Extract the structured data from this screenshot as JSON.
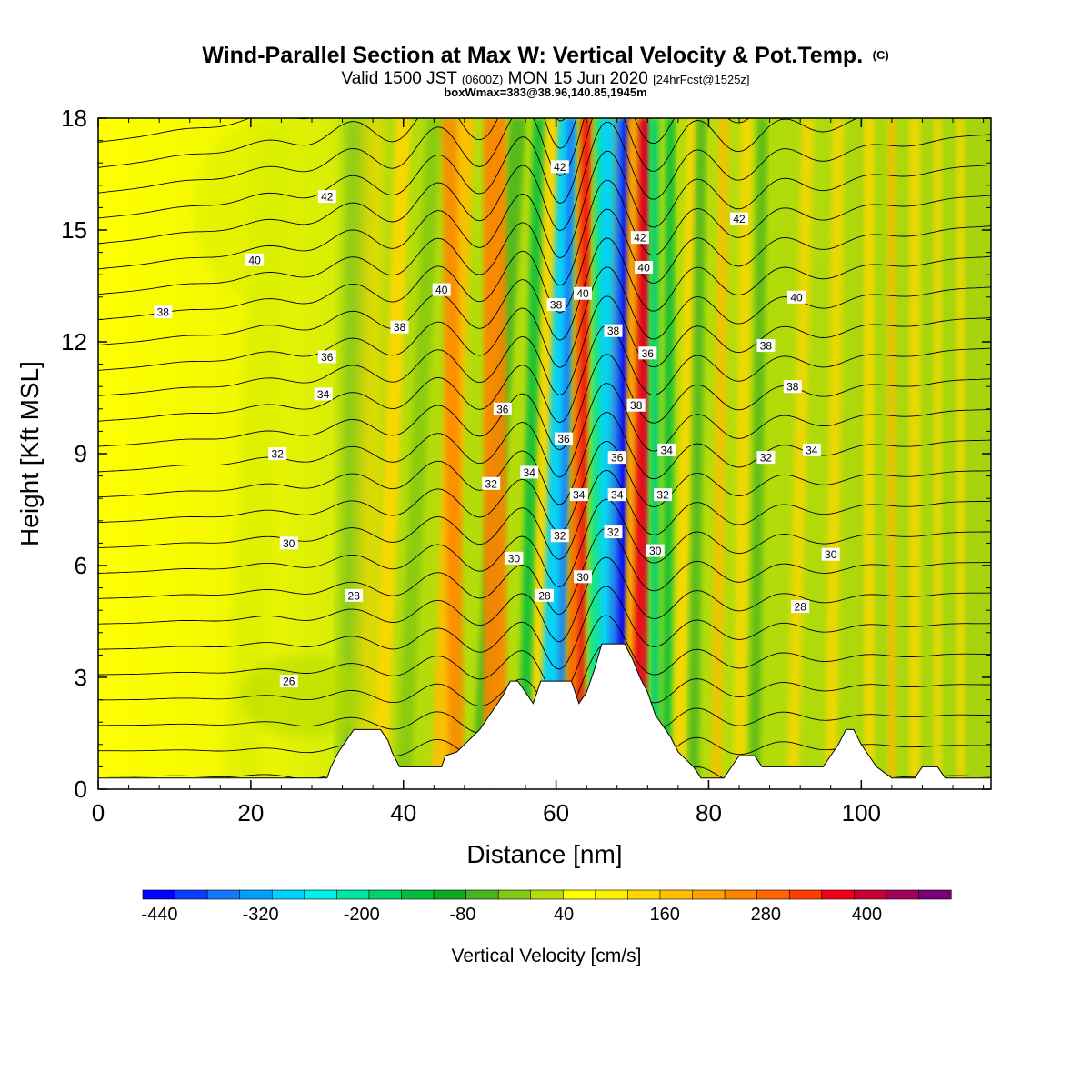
{
  "header": {
    "title_main": "Wind-Parallel Section at Max W: Vertical Velocity & Pot.Temp.",
    "title_mark": "(C)",
    "subtitle_a": "Valid 1500 JST ",
    "subtitle_b": "(0600Z)",
    "subtitle_c": " MON 15 Jun 2020 ",
    "subtitle_d": "[24hrFcst@1525z]",
    "boxline": "boxWmax=383@38.96,140.85,1945m"
  },
  "chart_data": {
    "type": "contour",
    "xlabel": "Distance [nm]",
    "ylabel": "Height [Kft MSL]",
    "xlim": [
      0,
      117
    ],
    "ylim": [
      0,
      18
    ],
    "x_ticks": [
      0,
      20,
      40,
      60,
      80,
      100
    ],
    "y_ticks": [
      0,
      3,
      6,
      9,
      12,
      15,
      18
    ],
    "colorbar": {
      "title": "Vertical Velocity [cm/s]",
      "min": -460,
      "max": 500,
      "step": 40,
      "labels": [
        -440,
        -320,
        -200,
        -80,
        40,
        160,
        280,
        400
      ],
      "colors": [
        "#0000ff",
        "#0a3cff",
        "#1478ff",
        "#00a0ff",
        "#00d2ff",
        "#00f0e6",
        "#00e6a0",
        "#00d26e",
        "#00be3c",
        "#0aaa1e",
        "#46b41e",
        "#82c814",
        "#b4dc0a",
        "#ffff00",
        "#fff000",
        "#ffd700",
        "#ffbe00",
        "#ffa000",
        "#ff8200",
        "#ff6400",
        "#ff3c00",
        "#f00014",
        "#c80032",
        "#a0005a",
        "#780078"
      ]
    },
    "theta_contour_labels": [
      {
        "value": "42",
        "x": 30,
        "y": 15.9
      },
      {
        "value": "40",
        "x": 20.5,
        "y": 14.2
      },
      {
        "value": "38",
        "x": 8.5,
        "y": 12.8
      },
      {
        "value": "36",
        "x": 30,
        "y": 11.6
      },
      {
        "value": "34",
        "x": 29.5,
        "y": 10.6
      },
      {
        "value": "32",
        "x": 23.5,
        "y": 9.0
      },
      {
        "value": "30",
        "x": 25,
        "y": 6.6
      },
      {
        "value": "28",
        "x": 33.5,
        "y": 5.2
      },
      {
        "value": "26",
        "x": 25,
        "y": 2.9
      },
      {
        "value": "40",
        "x": 45,
        "y": 13.4
      },
      {
        "value": "38",
        "x": 39.5,
        "y": 12.4
      },
      {
        "value": "36",
        "x": 53,
        "y": 10.2
      },
      {
        "value": "32",
        "x": 51.5,
        "y": 8.2
      },
      {
        "value": "34",
        "x": 56.5,
        "y": 8.5
      },
      {
        "value": "30",
        "x": 54.5,
        "y": 6.2
      },
      {
        "value": "28",
        "x": 58.5,
        "y": 5.2
      },
      {
        "value": "42",
        "x": 60.5,
        "y": 16.7
      },
      {
        "value": "38",
        "x": 60,
        "y": 13.0
      },
      {
        "value": "40",
        "x": 63.5,
        "y": 13.3
      },
      {
        "value": "36",
        "x": 61,
        "y": 9.4
      },
      {
        "value": "34",
        "x": 63,
        "y": 7.9
      },
      {
        "value": "32",
        "x": 60.5,
        "y": 6.8
      },
      {
        "value": "30",
        "x": 63.5,
        "y": 5.7
      },
      {
        "value": "38",
        "x": 67.5,
        "y": 12.3
      },
      {
        "value": "36",
        "x": 68,
        "y": 8.9
      },
      {
        "value": "34",
        "x": 68,
        "y": 7.9
      },
      {
        "value": "32",
        "x": 67.5,
        "y": 6.9
      },
      {
        "value": "42",
        "x": 71,
        "y": 14.8
      },
      {
        "value": "40",
        "x": 71.5,
        "y": 14.0
      },
      {
        "value": "36",
        "x": 72,
        "y": 11.7
      },
      {
        "value": "38",
        "x": 70.5,
        "y": 10.3
      },
      {
        "value": "34",
        "x": 74.5,
        "y": 9.1
      },
      {
        "value": "32",
        "x": 74,
        "y": 7.9
      },
      {
        "value": "30",
        "x": 73,
        "y": 6.4
      },
      {
        "value": "42",
        "x": 84,
        "y": 15.3
      },
      {
        "value": "40",
        "x": 91.5,
        "y": 13.2
      },
      {
        "value": "38",
        "x": 87.5,
        "y": 11.9
      },
      {
        "value": "38",
        "x": 91,
        "y": 10.8
      },
      {
        "value": "34",
        "x": 93.5,
        "y": 9.1
      },
      {
        "value": "32",
        "x": 87.5,
        "y": 8.9
      },
      {
        "value": "30",
        "x": 96,
        "y": 6.3
      },
      {
        "value": "28",
        "x": 92,
        "y": 4.9
      }
    ],
    "terrain": [
      [
        0,
        0.3
      ],
      [
        30,
        0.3
      ],
      [
        30.5,
        0.6
      ],
      [
        31.5,
        1.0
      ],
      [
        32.5,
        1.3
      ],
      [
        33.5,
        1.6
      ],
      [
        37,
        1.6
      ],
      [
        38,
        1.3
      ],
      [
        38.5,
        1.0
      ],
      [
        39.5,
        0.6
      ],
      [
        45,
        0.6
      ],
      [
        45.5,
        0.9
      ],
      [
        47,
        1.0
      ],
      [
        48,
        1.2
      ],
      [
        49,
        1.4
      ],
      [
        50,
        1.6
      ],
      [
        51,
        1.9
      ],
      [
        52,
        2.2
      ],
      [
        53,
        2.5
      ],
      [
        54,
        2.9
      ],
      [
        55,
        2.9
      ],
      [
        56,
        2.6
      ],
      [
        57,
        2.3
      ],
      [
        58,
        2.9
      ],
      [
        62,
        2.9
      ],
      [
        62.5,
        2.6
      ],
      [
        63,
        2.3
      ],
      [
        64,
        2.6
      ],
      [
        65,
        3.2
      ],
      [
        66,
        3.9
      ],
      [
        69,
        3.9
      ],
      [
        70,
        3.5
      ],
      [
        71,
        3.0
      ],
      [
        72,
        2.6
      ],
      [
        73,
        2.0
      ],
      [
        74,
        1.7
      ],
      [
        75,
        1.4
      ],
      [
        76,
        1.0
      ],
      [
        77,
        0.8
      ],
      [
        78,
        0.6
      ],
      [
        79,
        0.3
      ],
      [
        81,
        0.3
      ],
      [
        82,
        0.3
      ],
      [
        83,
        0.6
      ],
      [
        84,
        0.9
      ],
      [
        86,
        0.9
      ],
      [
        87,
        0.6
      ],
      [
        95,
        0.6
      ],
      [
        96,
        0.9
      ],
      [
        97,
        1.2
      ],
      [
        98,
        1.6
      ],
      [
        99,
        1.6
      ],
      [
        100,
        1.2
      ],
      [
        101,
        0.9
      ],
      [
        102,
        0.6
      ],
      [
        104,
        0.3
      ],
      [
        107,
        0.3
      ],
      [
        108,
        0.6
      ],
      [
        110,
        0.6
      ],
      [
        111,
        0.3
      ],
      [
        117,
        0.3
      ]
    ]
  }
}
